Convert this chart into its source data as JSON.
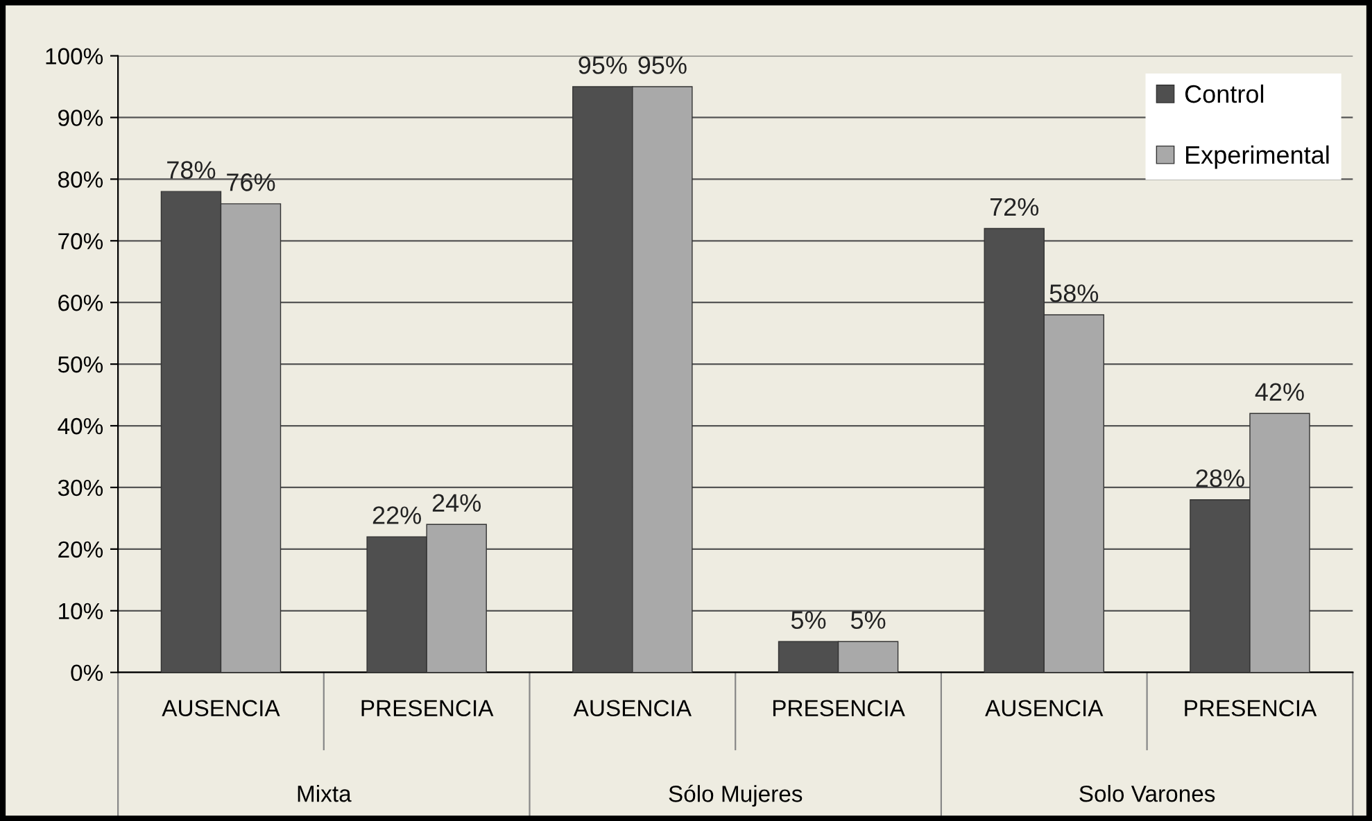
{
  "chart_data": {
    "type": "bar",
    "categories": [
      "AUSENCIA",
      "PRESENCIA",
      "AUSENCIA",
      "PRESENCIA",
      "AUSENCIA",
      "PRESENCIA"
    ],
    "series": [
      {
        "name": "Control",
        "color": "#4f4f4f",
        "values": [
          78,
          22,
          95,
          5,
          72,
          28
        ],
        "value_labels": [
          "78%",
          "22%",
          "95%",
          "5%",
          "72%",
          "28%"
        ]
      },
      {
        "name": "Experimental",
        "color": "#a9a9a9",
        "values": [
          76,
          24,
          95,
          5,
          58,
          42
        ],
        "value_labels": [
          "76%",
          "24%",
          "95%",
          "5%",
          "58%",
          "42%"
        ]
      }
    ],
    "annotations": [
      "Mixta",
      "Sólo Mujeres",
      "Solo Varones"
    ],
    "ylim": [
      0,
      100
    ],
    "yticks": [
      {
        "value": 0,
        "label": "0%"
      },
      {
        "value": 10,
        "label": "10%"
      },
      {
        "value": 20,
        "label": "20%"
      },
      {
        "value": 30,
        "label": "30%"
      },
      {
        "value": 40,
        "label": "40%"
      },
      {
        "value": 50,
        "label": "50%"
      },
      {
        "value": 60,
        "label": "60%"
      },
      {
        "value": 70,
        "label": "70%"
      },
      {
        "value": 80,
        "label": "80%"
      },
      {
        "value": 90,
        "label": "90%"
      },
      {
        "value": 100,
        "label": "100%"
      }
    ],
    "grid": "y",
    "legend": "top right"
  }
}
